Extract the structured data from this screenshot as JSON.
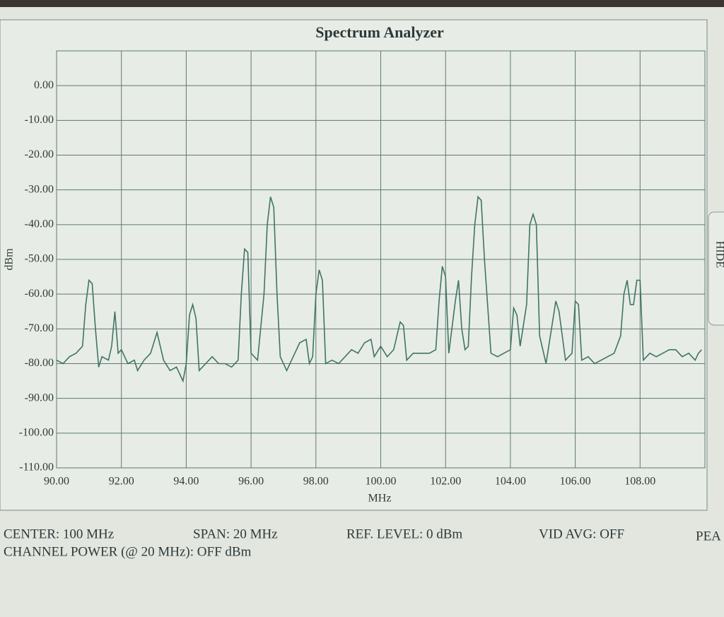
{
  "chart_data": {
    "type": "line",
    "title": "Spectrum Analyzer",
    "xlabel": "MHz",
    "ylabel": "dBm",
    "xlim": [
      90,
      110
    ],
    "ylim": [
      -110,
      10
    ],
    "grid": true,
    "xticks": [
      {
        "value": 90,
        "label": "90.00"
      },
      {
        "value": 92,
        "label": "92.00"
      },
      {
        "value": 94,
        "label": "94.00"
      },
      {
        "value": 96,
        "label": "96.00"
      },
      {
        "value": 98,
        "label": "98.00"
      },
      {
        "value": 100,
        "label": "100.00"
      },
      {
        "value": 102,
        "label": "102.00"
      },
      {
        "value": 104,
        "label": "104.00"
      },
      {
        "value": 106,
        "label": "106.00"
      },
      {
        "value": 108,
        "label": "108.00"
      }
    ],
    "yticks": [
      {
        "value": 0,
        "label": "0.00"
      },
      {
        "value": -10,
        "label": "-10.00"
      },
      {
        "value": -20,
        "label": "-20.00"
      },
      {
        "value": -30,
        "label": "-30.00"
      },
      {
        "value": -40,
        "label": "-40.00"
      },
      {
        "value": -50,
        "label": "-50.00"
      },
      {
        "value": -60,
        "label": "-60.00"
      },
      {
        "value": -70,
        "label": "-70.00"
      },
      {
        "value": -80,
        "label": "-80.00"
      },
      {
        "value": -90,
        "label": "-90.00"
      },
      {
        "value": -100,
        "label": "-100.00"
      },
      {
        "value": -110,
        "label": "-110.00"
      }
    ],
    "x": [
      90.0,
      90.2,
      90.4,
      90.6,
      90.8,
      90.9,
      91.0,
      91.1,
      91.2,
      91.3,
      91.4,
      91.6,
      91.7,
      91.8,
      91.9,
      92.0,
      92.2,
      92.4,
      92.5,
      92.7,
      92.9,
      93.1,
      93.3,
      93.5,
      93.7,
      93.9,
      94.0,
      94.1,
      94.2,
      94.3,
      94.4,
      94.6,
      94.8,
      95.0,
      95.2,
      95.4,
      95.6,
      95.7,
      95.8,
      95.9,
      96.0,
      96.2,
      96.4,
      96.5,
      96.6,
      96.7,
      96.8,
      96.9,
      97.1,
      97.3,
      97.5,
      97.7,
      97.8,
      97.9,
      98.0,
      98.1,
      98.2,
      98.3,
      98.5,
      98.7,
      98.9,
      99.1,
      99.3,
      99.5,
      99.7,
      99.8,
      100.0,
      100.2,
      100.4,
      100.6,
      100.7,
      100.8,
      101.0,
      101.2,
      101.5,
      101.7,
      101.8,
      101.9,
      102.0,
      102.1,
      102.3,
      102.4,
      102.5,
      102.6,
      102.7,
      102.8,
      102.9,
      103.0,
      103.1,
      103.2,
      103.4,
      103.6,
      103.8,
      104.0,
      104.1,
      104.2,
      104.3,
      104.5,
      104.6,
      104.7,
      104.8,
      104.9,
      105.1,
      105.3,
      105.4,
      105.5,
      105.7,
      105.9,
      106.0,
      106.1,
      106.2,
      106.4,
      106.6,
      106.8,
      107.0,
      107.2,
      107.4,
      107.5,
      107.6,
      107.7,
      107.8,
      107.9,
      108.0,
      108.1,
      108.3,
      108.5,
      108.7,
      108.9,
      109.1,
      109.3,
      109.5,
      109.7,
      109.8,
      109.9
    ],
    "series": [
      {
        "color": "#3f7565",
        "values": [
          -79,
          -80,
          -78,
          -77,
          -75,
          -63,
          -56,
          -57,
          -70,
          -81,
          -78,
          -79,
          -75,
          -65,
          -77,
          -76,
          -80,
          -79,
          -82,
          -79,
          -77,
          -71,
          -79,
          -82,
          -81,
          -85,
          -80,
          -66,
          -63,
          -67,
          -82,
          -80,
          -78,
          -80,
          -80,
          -81,
          -79,
          -60,
          -47,
          -48,
          -77,
          -79,
          -60,
          -40,
          -32,
          -35,
          -60,
          -78,
          -82,
          -78,
          -74,
          -73,
          -80,
          -78,
          -60,
          -53,
          -56,
          -80,
          -79,
          -80,
          -78,
          -76,
          -77,
          -74,
          -73,
          -78,
          -75,
          -78,
          -76,
          -68,
          -69,
          -79,
          -77,
          -77,
          -77,
          -76,
          -62,
          -52,
          -55,
          -77,
          -62,
          -56,
          -70,
          -76,
          -75,
          -55,
          -40,
          -32,
          -33,
          -50,
          -77,
          -78,
          -77,
          -76,
          -64,
          -66,
          -75,
          -63,
          -40,
          -37,
          -40,
          -72,
          -80,
          -68,
          -62,
          -65,
          -79,
          -77,
          -62,
          -63,
          -79,
          -78,
          -80,
          -79,
          -78,
          -77,
          -72,
          -60,
          -56,
          -63,
          -63,
          -56,
          -56,
          -79,
          -77,
          -78,
          -77,
          -76,
          -76,
          -78,
          -77,
          -79,
          -77,
          -76
        ]
      }
    ]
  },
  "status": [
    "CENTER: 100 MHz",
    "SPAN: 20 MHz",
    "REF. LEVEL: 0 dBm",
    "VID AVG: OFF",
    "PEA",
    "CHANNEL POWER (@ 20 MHz): OFF dBm"
  ],
  "side_tab": "HIDE"
}
